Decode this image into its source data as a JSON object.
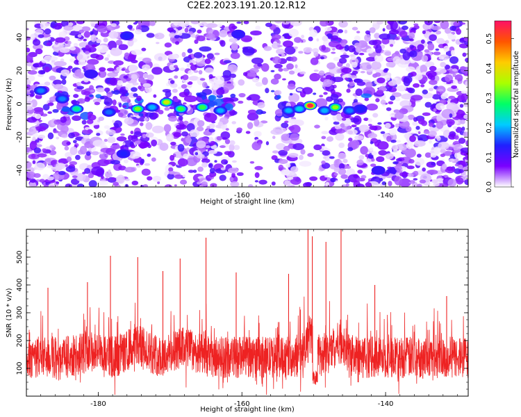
{
  "title": "C2E2.2023.191.20.12.R12",
  "chart_data": [
    {
      "type": "heatmap",
      "xlabel": "Height of straight line (km)",
      "ylabel": "Frequency (Hz)",
      "xlim": [
        -190,
        -128.5
      ],
      "ylim": [
        -50,
        50
      ],
      "x_ticks": [
        -180,
        -160,
        -140
      ],
      "y_ticks": [
        -40,
        -20,
        0,
        20,
        40
      ],
      "colorbar": {
        "label": "Normalized spectral amplitude",
        "range": [
          0,
          0.56
        ],
        "ticks": [
          0.0,
          0.1,
          0.2,
          0.3,
          0.4,
          0.5
        ],
        "colors": [
          "#ffffff",
          "#7a00ff",
          "#2020ff",
          "#00ccff",
          "#00ff66",
          "#aaff00",
          "#ffcc00",
          "#ff5500",
          "#ff1166"
        ]
      },
      "peaks": [
        {
          "x": -183,
          "y": -3,
          "v": 0.26
        },
        {
          "x": -181,
          "y": 18,
          "v": 0.12
        },
        {
          "x": -178.5,
          "y": -5,
          "v": 0.17
        },
        {
          "x": -176.5,
          "y": -30,
          "v": 0.14
        },
        {
          "x": -174.5,
          "y": -3,
          "v": 0.33
        },
        {
          "x": -172.5,
          "y": -2,
          "v": 0.2
        },
        {
          "x": -170.5,
          "y": 1,
          "v": 0.38
        },
        {
          "x": -168.5,
          "y": -3,
          "v": 0.3
        },
        {
          "x": -165.5,
          "y": -2,
          "v": 0.3
        },
        {
          "x": -163,
          "y": -4,
          "v": 0.2
        },
        {
          "x": -153.5,
          "y": -4,
          "v": 0.2
        },
        {
          "x": -152,
          "y": -3,
          "v": 0.22
        },
        {
          "x": -150.5,
          "y": -1,
          "v": 0.54
        },
        {
          "x": -148.5,
          "y": -4,
          "v": 0.2
        },
        {
          "x": -147,
          "y": -2,
          "v": 0.34
        },
        {
          "x": -145,
          "y": -4,
          "v": 0.18
        },
        {
          "x": -143.5,
          "y": -3,
          "v": 0.14
        },
        {
          "x": -188,
          "y": 8,
          "v": 0.18
        },
        {
          "x": -185,
          "y": 3,
          "v": 0.18
        },
        {
          "x": -176,
          "y": 41,
          "v": 0.14
        },
        {
          "x": -160.5,
          "y": 42,
          "v": 0.13
        },
        {
          "x": -141,
          "y": -40,
          "v": 0.12
        }
      ]
    },
    {
      "type": "line",
      "xlabel": "Height of straight line (km)",
      "ylabel": "SNR (10 * v/v)",
      "xlim": [
        -190,
        -128.5
      ],
      "ylim": [
        0,
        600
      ],
      "x_ticks": [
        -180,
        -160,
        -140
      ],
      "y_ticks": [
        100,
        200,
        300,
        400,
        500
      ],
      "series": [
        {
          "color": "#ee2222",
          "spikes": [
            {
              "x": -187,
              "y": 390
            },
            {
              "x": -181.5,
              "y": 410
            },
            {
              "x": -178.3,
              "y": 505
            },
            {
              "x": -174.5,
              "y": 500
            },
            {
              "x": -171,
              "y": 450
            },
            {
              "x": -168.6,
              "y": 495
            },
            {
              "x": -165,
              "y": 570
            },
            {
              "x": -160.8,
              "y": 445
            },
            {
              "x": -153.5,
              "y": 440
            },
            {
              "x": -150.8,
              "y": 600
            },
            {
              "x": -150.2,
              "y": 575
            },
            {
              "x": -148.3,
              "y": 555
            },
            {
              "x": -146.2,
              "y": 600
            },
            {
              "x": -141.5,
              "y": 400
            },
            {
              "x": -131.5,
              "y": 360
            }
          ]
        }
      ]
    }
  ]
}
